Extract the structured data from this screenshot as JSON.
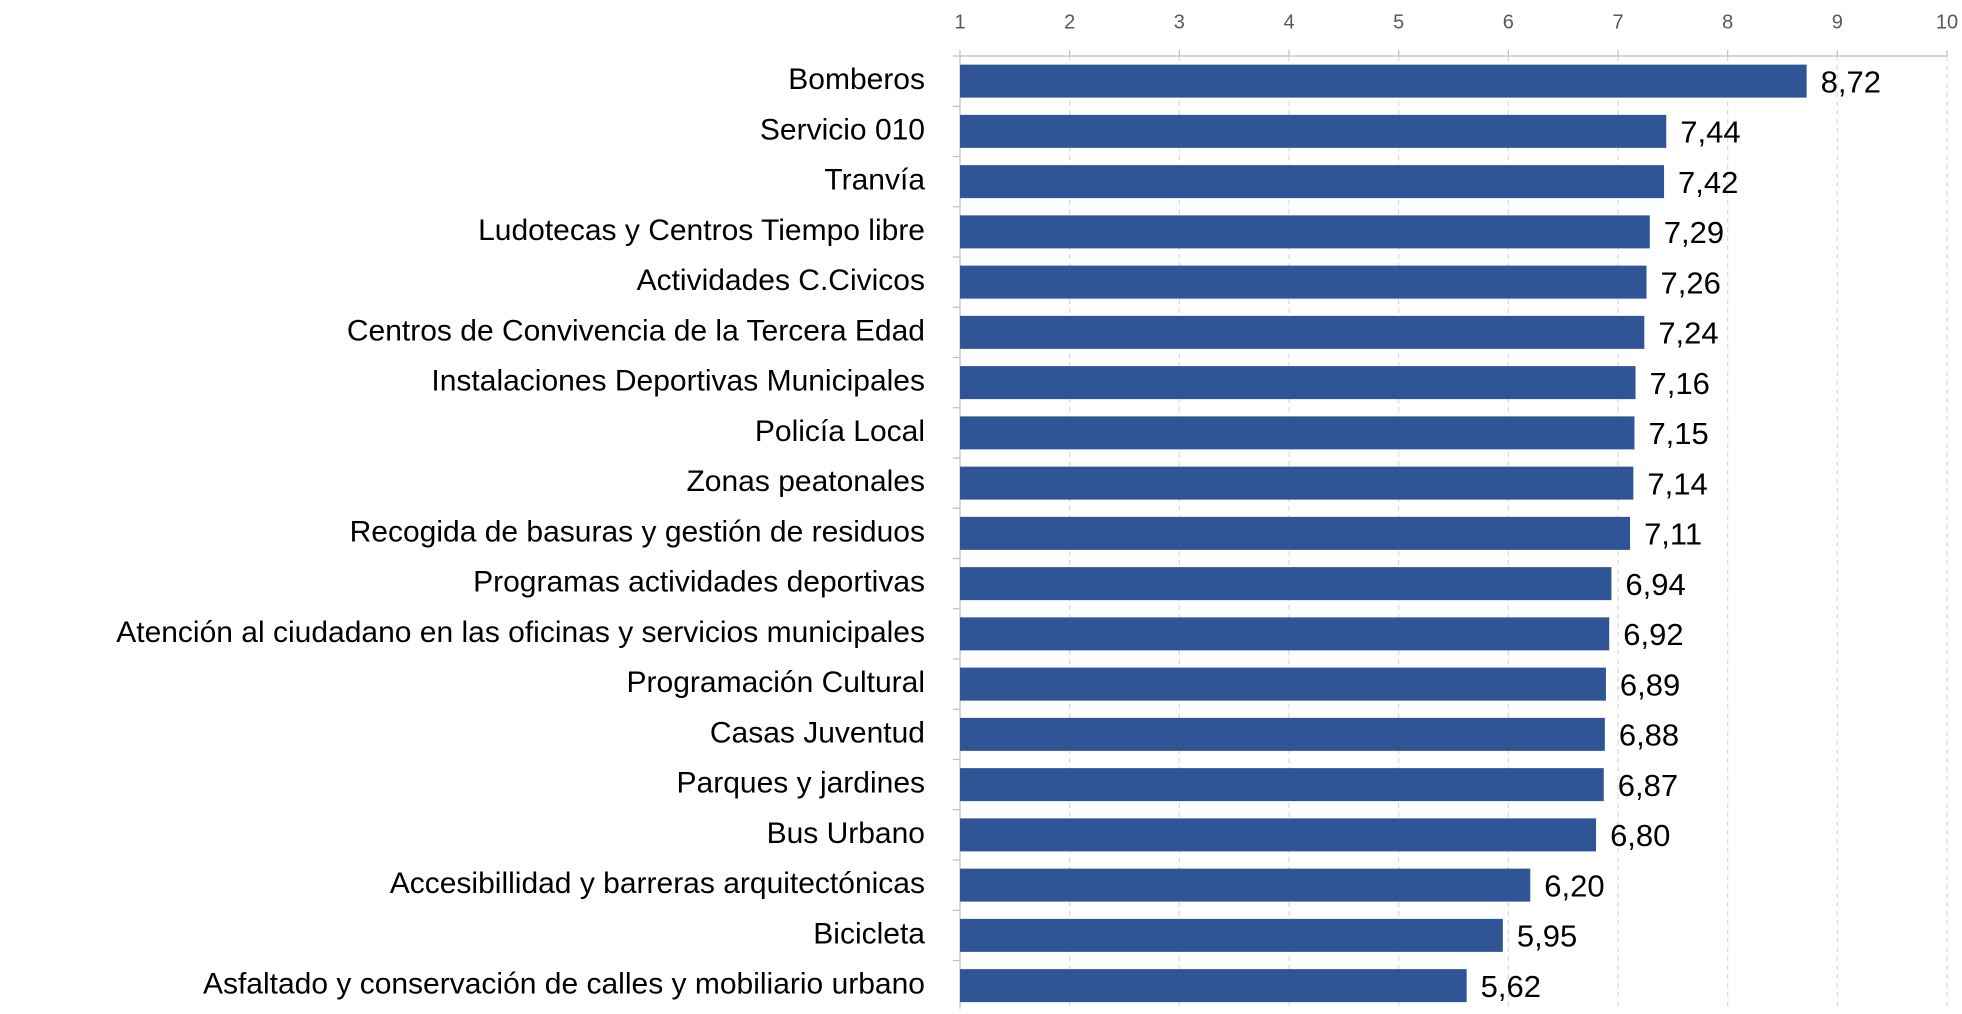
{
  "chart_data": {
    "type": "barh",
    "categories": [
      "Bomberos",
      "Servicio 010",
      "Tranvía",
      "Ludotecas y Centros Tiempo libre",
      "Actividades C.Civicos",
      "Centros de Convivencia de la Tercera Edad",
      "Instalaciones Deportivas Municipales",
      "Policía Local",
      "Zonas peatonales",
      "Recogida de basuras y gestión de residuos",
      "Programas actividades deportivas",
      "Atención al ciudadano en las oficinas y servicios municipales",
      "Programación Cultural",
      "Casas Juventud",
      "Parques y jardines",
      "Bus Urbano",
      "Accesibillidad y barreras arquitectónicas",
      "Bicicleta",
      "Asfaltado y conservación de calles y mobiliario urbano"
    ],
    "values": [
      8.72,
      7.44,
      7.42,
      7.29,
      7.26,
      7.24,
      7.16,
      7.15,
      7.14,
      7.11,
      6.94,
      6.92,
      6.89,
      6.88,
      6.87,
      6.8,
      6.2,
      5.95,
      5.62
    ],
    "value_labels": [
      "8,72",
      "7,44",
      "7,42",
      "7,29",
      "7,26",
      "7,24",
      "7,16",
      "7,15",
      "7,14",
      "7,11",
      "6,94",
      "6,92",
      "6,89",
      "6,88",
      "6,87",
      "6,80",
      "6,20",
      "5,95",
      "5,62"
    ],
    "color": "#2f5597",
    "xlim": [
      1,
      10
    ],
    "xticks": [
      1,
      2,
      3,
      4,
      5,
      6,
      7,
      8,
      9,
      10
    ],
    "grid": true
  }
}
